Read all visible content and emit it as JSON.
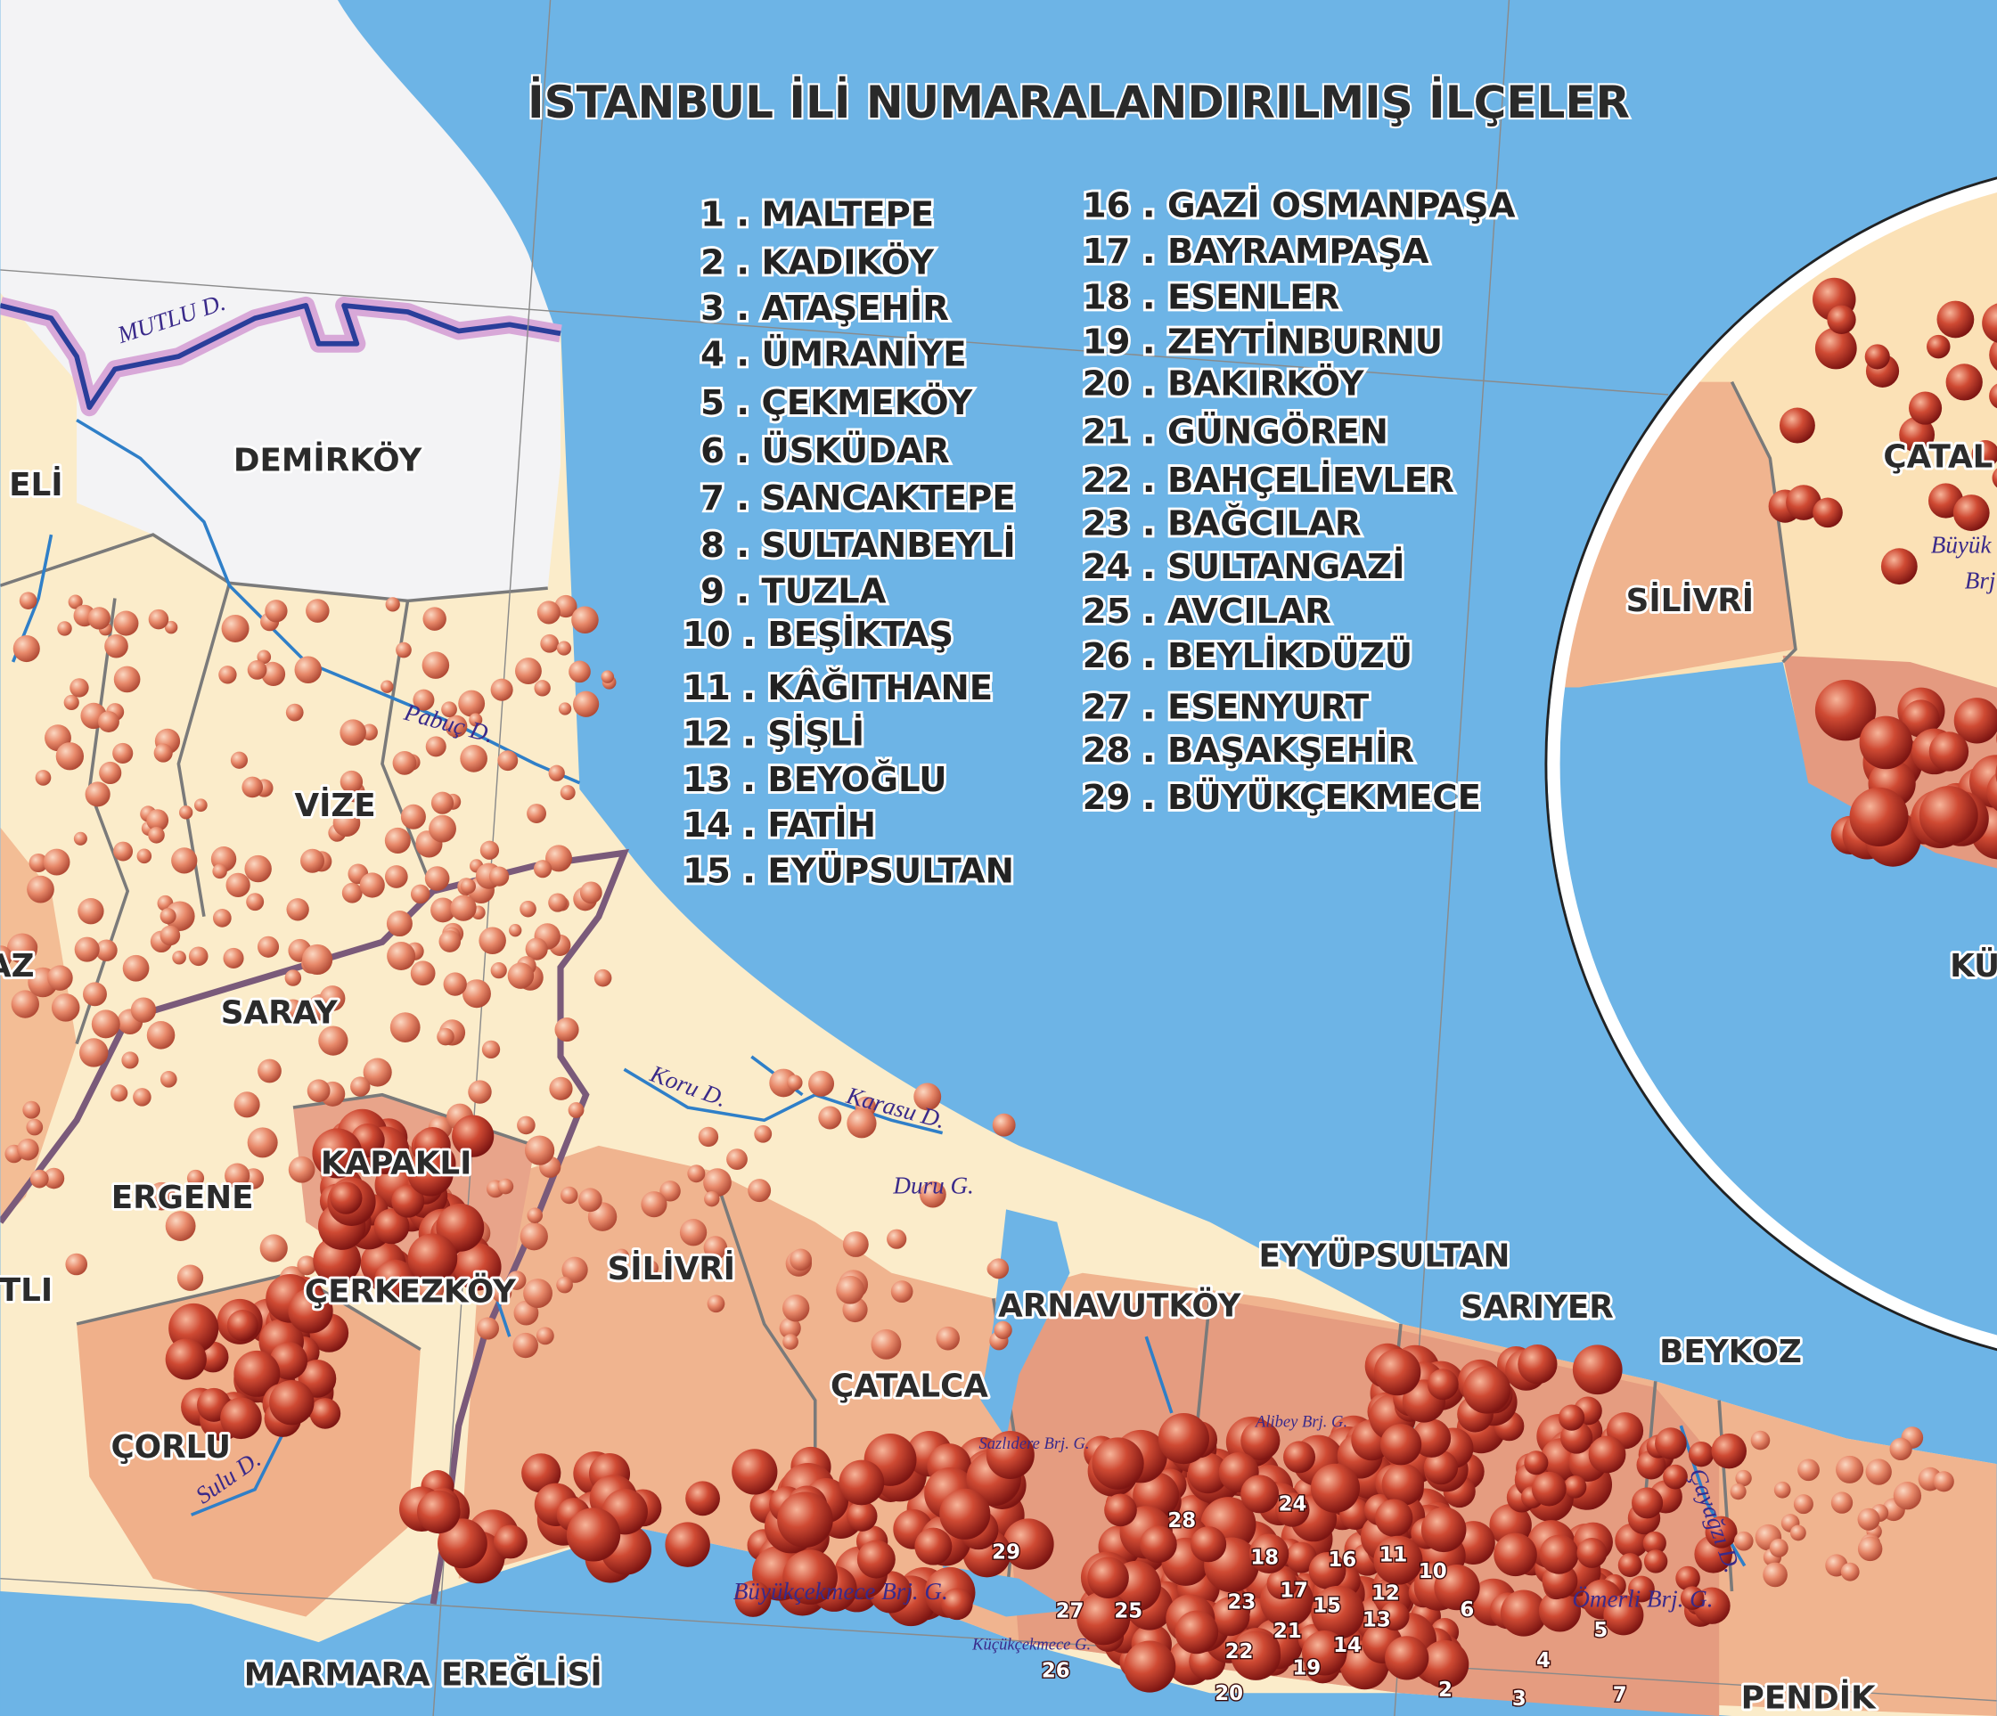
{
  "title": "İSTANBUL İLİ NUMARALANDIRILMIŞ İLÇELER",
  "legend": [
    "1 . MALTEPE",
    "2 . KADIKÖY",
    "3 . ATAŞEHİR",
    "4 . ÜMRANİYE",
    "5 . ÇEKMEKÖY",
    "6 . ÜSKÜDAR",
    "7 . SANCAKTEPE",
    "8 . SULTANBEYLİ",
    "9 . TUZLA",
    "10 . BEŞİKTAŞ",
    "11 . KÂĞITHANE",
    "12 . ŞİŞLİ",
    "13 . BEYOĞLU",
    "14 . FATİH",
    "15 . EYÜPSULTAN",
    "16 . GAZİ OSMANPAŞA",
    "17 . BAYRAMPAŞA",
    "18 . ESENLER",
    "19 . ZEYTİNBURNU",
    "20 . BAKIRKÖY",
    "21 . GÜNGÖREN",
    "22 . BAHÇELİEVLER",
    "23 . BAĞCILAR",
    "24 . SULTANGAZİ",
    "25 . AVCILAR",
    "26 . BEYLİKDÜZÜ",
    "27 . ESENYURT",
    "28 . BAŞAKŞEHİR",
    "29 . BÜYÜKÇEKMECE"
  ],
  "places": [
    "DEMİRKÖY",
    "VİZE",
    "SARAY",
    "KAPAKLI",
    "ERGENE",
    "ÇERKEZKÖY",
    "ÇORLU",
    "MARMARA EREĞLİSİ",
    "SİLİVRİ",
    "ÇATALCA",
    "ARNAVUTKÖY",
    "EYYÜPSULTAN",
    "SARIYER",
    "BEYKOZ",
    "PENDİK",
    "ELİ",
    "AZ",
    "TLI"
  ],
  "inset_places": [
    "SİLİVRİ",
    "ÇATAL",
    "KÜÇ"
  ],
  "waters": [
    "MUTLU D.",
    "Pabuç D.",
    "Koru D.",
    "Karasu D.",
    "Duru G.",
    "Sulu D.",
    "Sazlıdere Brj. G.",
    "Alibey Brj. G.",
    "Büyükçekmece Brj. G.",
    "Küçükçekmece G.",
    "Ömerli Brj. G.",
    "Çayağzı D.",
    "Büyük",
    "Brj"
  ],
  "district_numbers": [
    "28",
    "24",
    "18",
    "16",
    "11",
    "10",
    "29",
    "27",
    "25",
    "23",
    "17",
    "15",
    "12",
    "6",
    "13",
    "21",
    "14",
    "22",
    "19",
    "20",
    "2",
    "3",
    "4",
    "5",
    "7",
    "26"
  ]
}
